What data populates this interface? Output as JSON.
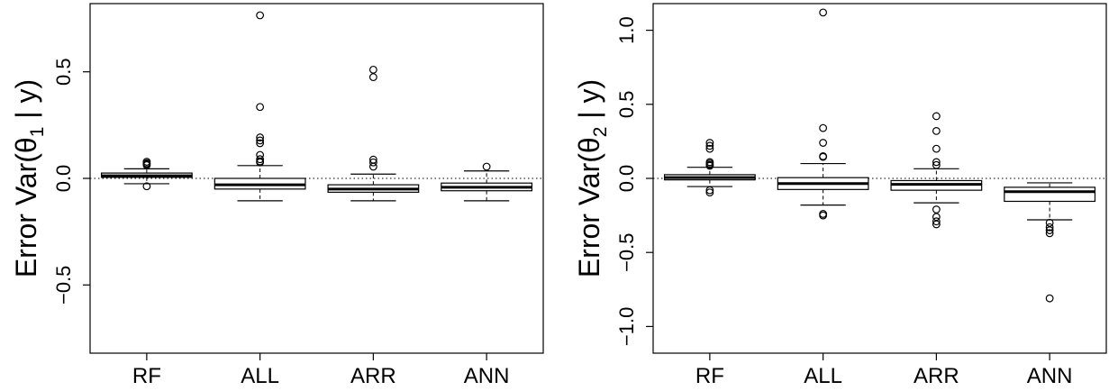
{
  "figure": {
    "colors": {
      "axis": "#000000",
      "box_fill": "#ffffff",
      "reference_line": "#000000"
    }
  },
  "chart_data": [
    {
      "type": "boxplot",
      "ylabel": "Error Var(θ1 | y)",
      "ylabel_parts": {
        "prefix": "Error Var(θ",
        "subscript": "1",
        "suffix": " | y)"
      },
      "categories": [
        "RF",
        "ALL",
        "ARR",
        "ANN"
      ],
      "ylim": [
        -0.82,
        0.82
      ],
      "yticks": [
        -0.5,
        0.0,
        0.5
      ],
      "ytick_labels": [
        "−0.5",
        "0.0",
        "0.5"
      ],
      "reference_line": {
        "y": 0.0,
        "style": "dotted"
      },
      "boxes": [
        {
          "category": "RF",
          "whisker_low": -0.025,
          "q1": 0.005,
          "median": 0.012,
          "q3": 0.025,
          "whisker_high": 0.045,
          "outliers": [
            0.078,
            0.071,
            0.067,
            0.062,
            -0.037
          ]
        },
        {
          "category": "ALL",
          "whisker_low": -0.105,
          "q1": -0.05,
          "median": -0.03,
          "q3": 0.0,
          "whisker_high": 0.06,
          "outliers": [
            0.765,
            0.335,
            0.192,
            0.178,
            0.165,
            0.11,
            0.09,
            0.08,
            0.075
          ]
        },
        {
          "category": "ARR",
          "whisker_low": -0.105,
          "q1": -0.065,
          "median": -0.05,
          "q3": -0.03,
          "whisker_high": 0.02,
          "outliers": [
            0.51,
            0.475,
            0.088,
            0.075,
            0.055
          ]
        },
        {
          "category": "ANN",
          "whisker_low": -0.105,
          "q1": -0.058,
          "median": -0.042,
          "q3": -0.022,
          "whisker_high": 0.035,
          "outliers": [
            0.055
          ]
        }
      ]
    },
    {
      "type": "boxplot",
      "ylabel": "Error Var(θ2 | y)",
      "ylabel_parts": {
        "prefix": "Error Var(θ",
        "subscript": "2",
        "suffix": " | y)"
      },
      "categories": [
        "RF",
        "ALL",
        "ARR",
        "ANN"
      ],
      "ylim": [
        -1.18,
        1.18
      ],
      "yticks": [
        -1.0,
        -0.5,
        0.0,
        0.5,
        1.0
      ],
      "ytick_labels": [
        "−1.0",
        "−0.5",
        "0.0",
        "0.5",
        "1.0"
      ],
      "reference_line": {
        "y": 0.0,
        "style": "dotted"
      },
      "boxes": [
        {
          "category": "RF",
          "whisker_low": -0.055,
          "q1": -0.01,
          "median": 0.005,
          "q3": 0.025,
          "whisker_high": 0.075,
          "outliers": [
            0.24,
            0.22,
            0.2,
            0.11,
            0.1,
            0.09,
            0.085,
            -0.08,
            -0.095
          ]
        },
        {
          "category": "ALL",
          "whisker_low": -0.18,
          "q1": -0.075,
          "median": -0.035,
          "q3": 0.005,
          "whisker_high": 0.1,
          "outliers": [
            1.12,
            0.34,
            0.24,
            0.15,
            0.145,
            -0.24,
            -0.25
          ]
        },
        {
          "category": "ARR",
          "whisker_low": -0.165,
          "q1": -0.08,
          "median": -0.04,
          "q3": -0.015,
          "whisker_high": 0.065,
          "outliers": [
            0.42,
            0.32,
            0.2,
            0.11,
            0.09,
            -0.21,
            -0.26,
            -0.29,
            -0.31
          ]
        },
        {
          "category": "ANN",
          "whisker_low": -0.28,
          "q1": -0.155,
          "median": -0.09,
          "q3": -0.06,
          "whisker_high": -0.03,
          "outliers": [
            -0.3,
            -0.33,
            -0.35,
            -0.37,
            -0.81
          ]
        }
      ]
    }
  ]
}
